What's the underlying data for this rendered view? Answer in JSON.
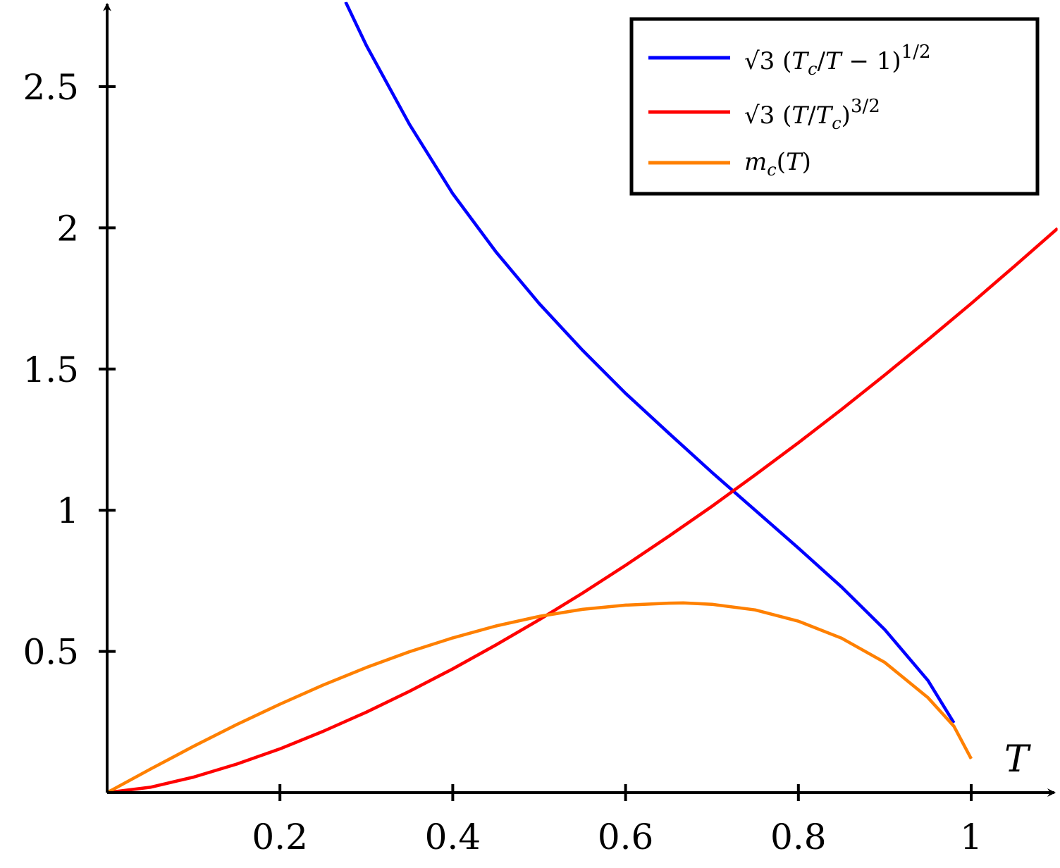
{
  "chart_data": {
    "type": "line",
    "xlabel": "T",
    "ylabel": "",
    "xlim": [
      0,
      1.1
    ],
    "ylim": [
      0,
      2.8
    ],
    "x_ticks": [
      0.2,
      0.4,
      0.6,
      0.8,
      1.0
    ],
    "x_tick_labels": [
      "0.2",
      "0.4",
      "0.6",
      "0.8",
      "1"
    ],
    "y_ticks": [
      0.5,
      1.0,
      1.5,
      2.0,
      2.5
    ],
    "y_tick_labels": [
      "0.5",
      "1",
      "1.5",
      "2",
      "2.5"
    ],
    "grid": false,
    "legend_position": "top-right",
    "series": [
      {
        "name": "√3 (Tc/T − 1)^1/2",
        "color": "#0000ff",
        "x": [
          0.276,
          0.3,
          0.35,
          0.4,
          0.45,
          0.5,
          0.55,
          0.6,
          0.65,
          0.7,
          0.75,
          0.8,
          0.85,
          0.9,
          0.95,
          0.98
        ],
        "y": [
          2.8,
          2.646,
          2.366,
          2.121,
          1.915,
          1.732,
          1.567,
          1.414,
          1.273,
          1.134,
          1.0,
          0.866,
          0.728,
          0.577,
          0.397,
          0.247
        ]
      },
      {
        "name": "√3 (T/Tc)^3/2",
        "color": "#ff0000",
        "x": [
          0.0,
          0.05,
          0.1,
          0.15,
          0.2,
          0.25,
          0.3,
          0.35,
          0.4,
          0.45,
          0.5,
          0.55,
          0.6,
          0.65,
          0.7,
          0.75,
          0.8,
          0.85,
          0.9,
          0.95,
          1.0,
          1.05,
          1.1
        ],
        "y": [
          0.0,
          0.019,
          0.055,
          0.101,
          0.155,
          0.217,
          0.285,
          0.359,
          0.438,
          0.523,
          0.612,
          0.706,
          0.805,
          0.908,
          1.014,
          1.125,
          1.239,
          1.357,
          1.479,
          1.604,
          1.732,
          1.864,
          1.998
        ]
      },
      {
        "name": "m_c(T)",
        "color": "#ff8000",
        "x": [
          0.0,
          0.05,
          0.1,
          0.15,
          0.2,
          0.25,
          0.3,
          0.35,
          0.4,
          0.45,
          0.5,
          0.55,
          0.6,
          0.65,
          0.667,
          0.7,
          0.75,
          0.8,
          0.85,
          0.9,
          0.95,
          0.98,
          1.0
        ],
        "y": [
          0.0,
          0.083,
          0.164,
          0.241,
          0.313,
          0.381,
          0.443,
          0.499,
          0.548,
          0.59,
          0.624,
          0.649,
          0.664,
          0.671,
          0.672,
          0.667,
          0.647,
          0.607,
          0.547,
          0.461,
          0.336,
          0.235,
          0.12
        ]
      }
    ]
  }
}
